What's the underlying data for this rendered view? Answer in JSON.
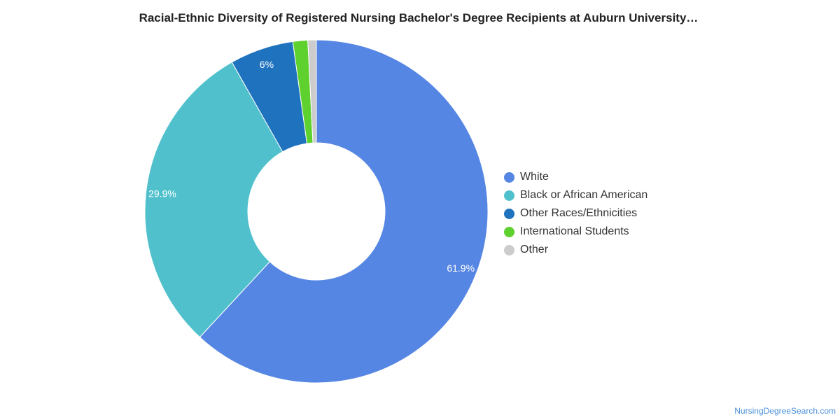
{
  "chart_data": {
    "type": "pie",
    "title": "Racial-Ethnic Diversity of Registered Nursing Bachelor's Degree Recipients at Auburn University…",
    "slices": [
      {
        "name": "White",
        "value": 61.9,
        "label": "61.9%",
        "color": "#5686e3"
      },
      {
        "name": "Black or African American",
        "value": 29.9,
        "label": "29.9%",
        "color": "#50c1cc"
      },
      {
        "name": "Other Races/Ethnicities",
        "value": 6.0,
        "label": "6%",
        "color": "#1f72bd"
      },
      {
        "name": "International Students",
        "value": 1.4,
        "label": "",
        "color": "#5fd12e"
      },
      {
        "name": "Other",
        "value": 0.8,
        "label": "",
        "color": "#cccccc"
      }
    ],
    "legend_position": "right",
    "donut": true
  },
  "footer": {
    "source": "NursingDegreeSearch.com"
  }
}
